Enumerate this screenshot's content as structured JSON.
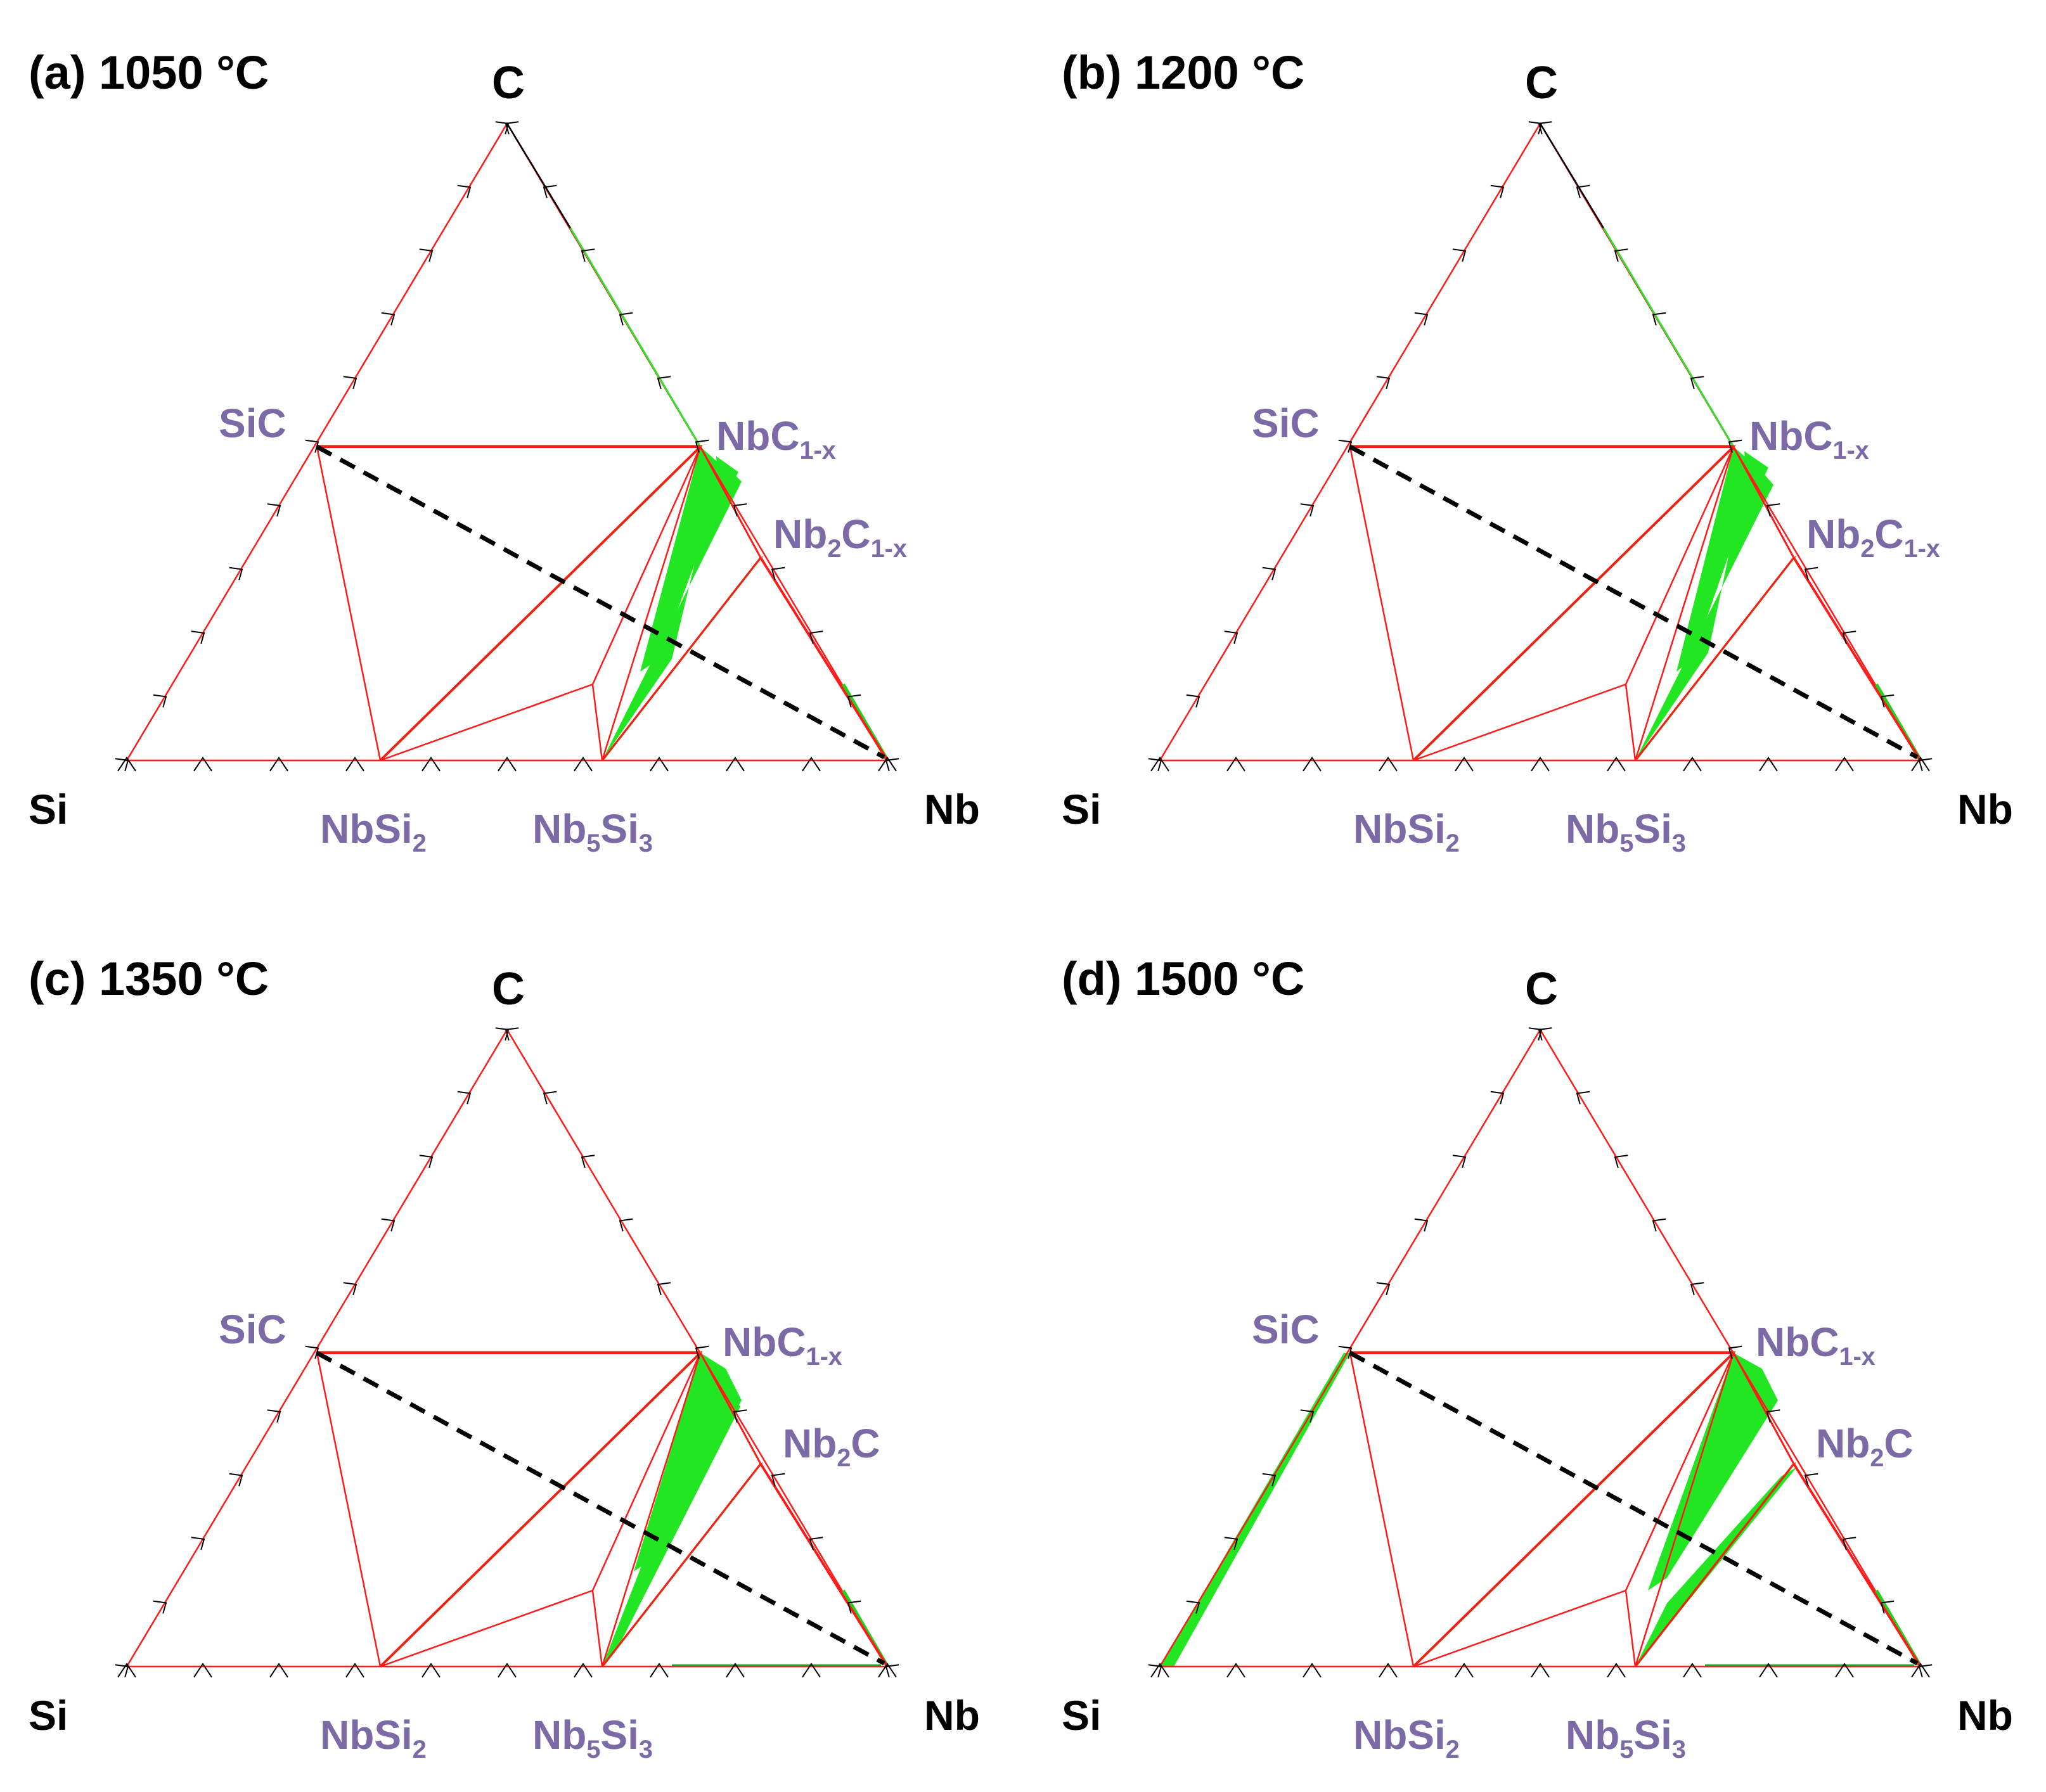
{
  "colors": {
    "boundary": "#ff1a1a",
    "two_phase_fill": "#22e622",
    "tie_line": "#cc3300",
    "dashed_section": "#000000",
    "phase_label": "#7b6aa6",
    "text": "#000000"
  },
  "panels": [
    {
      "title": "(a) 1050 °C",
      "vertices": {
        "top": "C",
        "left": "Si",
        "right": "Nb"
      },
      "phases": {
        "sic": "SiC",
        "nbc": {
          "base": "NbC",
          "sub": "1-x"
        },
        "nb2c": {
          "base": "Nb",
          "sub": "2",
          "base2": "C",
          "sub2": "1-x"
        },
        "nbsi2": {
          "base": "NbSi",
          "sub": "2"
        },
        "nb5si3": {
          "base": "Nb",
          "sub": "5",
          "base2": "Si",
          "sub2": "3"
        }
      }
    },
    {
      "title": "(b) 1200 °C",
      "vertices": {
        "top": "C",
        "left": "Si",
        "right": "Nb"
      },
      "phases": {
        "sic": "SiC",
        "nbc": {
          "base": "NbC",
          "sub": "1-x"
        },
        "nb2c": {
          "base": "Nb",
          "sub": "2",
          "base2": "C",
          "sub2": "1-x"
        },
        "nbsi2": {
          "base": "NbSi",
          "sub": "2"
        },
        "nb5si3": {
          "base": "Nb",
          "sub": "5",
          "base2": "Si",
          "sub2": "3"
        }
      }
    },
    {
      "title": "(c) 1350 °C",
      "vertices": {
        "top": "C",
        "left": "Si",
        "right": "Nb"
      },
      "phases": {
        "sic": "SiC",
        "nbc": {
          "base": "NbC",
          "sub": "1-x"
        },
        "nb2c": {
          "base": "Nb",
          "sub": "2",
          "base2": "C",
          "sub2": ""
        },
        "nbsi2": {
          "base": "NbSi",
          "sub": "2"
        },
        "nb5si3": {
          "base": "Nb",
          "sub": "5",
          "base2": "Si",
          "sub2": "3"
        }
      }
    },
    {
      "title": "(d) 1500 °C",
      "vertices": {
        "top": "C",
        "left": "Si",
        "right": "Nb"
      },
      "phases": {
        "sic": "SiC",
        "nbc": {
          "base": "NbC",
          "sub": "1-x"
        },
        "nb2c": {
          "base": "Nb",
          "sub": "2",
          "base2": "C",
          "sub2": ""
        },
        "nbsi2": {
          "base": "NbSi",
          "sub": "2"
        },
        "nb5si3": {
          "base": "Nb",
          "sub": "5",
          "base2": "Si",
          "sub2": "3"
        }
      }
    }
  ]
}
